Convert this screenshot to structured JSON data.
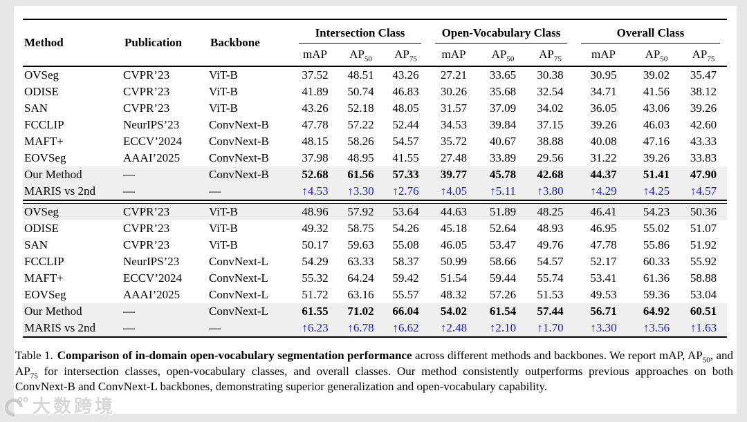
{
  "colors": {
    "delta_blue": "#1a1ad0",
    "row_highlight": "#efefef",
    "rule": "#000000",
    "page_background": "#e8e8e8",
    "card_background": "#ffffff"
  },
  "table": {
    "columns": {
      "method": "Method",
      "publication": "Publication",
      "backbone": "Backbone"
    },
    "groups": [
      {
        "label": "Intersection Class"
      },
      {
        "label": "Open-Vocabulary Class"
      },
      {
        "label": "Overall Class"
      }
    ],
    "metric_headers": [
      {
        "main": "mAP",
        "sub": ""
      },
      {
        "main": "AP",
        "sub": "50"
      },
      {
        "main": "AP",
        "sub": "75"
      },
      {
        "main": "mAP",
        "sub": ""
      },
      {
        "main": "AP",
        "sub": "50"
      },
      {
        "main": "AP",
        "sub": "75"
      },
      {
        "main": "mAP",
        "sub": ""
      },
      {
        "main": "AP",
        "sub": "50"
      },
      {
        "main": "AP",
        "sub": "75"
      }
    ],
    "blocks": [
      {
        "rows": [
          {
            "method": "OVSeg",
            "publication": "CVPR’23",
            "backbone": "ViT-B",
            "highlight": false,
            "bold": false,
            "delta": false,
            "values": [
              "37.52",
              "48.51",
              "43.26",
              "27.21",
              "33.65",
              "30.38",
              "30.95",
              "39.02",
              "35.47"
            ]
          },
          {
            "method": "ODISE",
            "publication": "CVPR’23",
            "backbone": "ViT-B",
            "highlight": false,
            "bold": false,
            "delta": false,
            "values": [
              "41.89",
              "50.74",
              "46.83",
              "30.26",
              "35.68",
              "32.54",
              "34.71",
              "41.56",
              "38.12"
            ]
          },
          {
            "method": "SAN",
            "publication": "CVPR’23",
            "backbone": "ViT-B",
            "highlight": false,
            "bold": false,
            "delta": false,
            "values": [
              "43.26",
              "52.18",
              "48.05",
              "31.57",
              "37.09",
              "34.02",
              "36.05",
              "43.06",
              "39.26"
            ]
          },
          {
            "method": "FCCLIP",
            "publication": "NeurIPS’23",
            "backbone": "ConvNext-B",
            "highlight": false,
            "bold": false,
            "delta": false,
            "values": [
              "47.78",
              "57.22",
              "52.44",
              "34.53",
              "39.84",
              "37.15",
              "39.26",
              "46.03",
              "42.60"
            ]
          },
          {
            "method": "MAFT+",
            "publication": "ECCV’2024",
            "backbone": "ConvNext-B",
            "highlight": false,
            "bold": false,
            "delta": false,
            "values": [
              "48.15",
              "58.26",
              "54.57",
              "35.72",
              "40.67",
              "38.88",
              "40.08",
              "47.16",
              "43.33"
            ]
          },
          {
            "method": "EOVSeg",
            "publication": "AAAI’2025",
            "backbone": "ConvNext-B",
            "highlight": false,
            "bold": false,
            "delta": false,
            "values": [
              "37.98",
              "48.95",
              "41.55",
              "27.48",
              "33.89",
              "29.56",
              "31.22",
              "39.26",
              "33.83"
            ]
          },
          {
            "method": "Our Method",
            "publication": "—",
            "backbone": "ConvNext-B",
            "highlight": true,
            "bold": true,
            "delta": false,
            "values": [
              "52.68",
              "61.56",
              "57.33",
              "39.77",
              "45.78",
              "42.68",
              "44.37",
              "51.41",
              "47.90"
            ]
          },
          {
            "method": "MARIS vs 2nd",
            "publication": "—",
            "backbone": "—",
            "highlight": true,
            "bold": false,
            "delta": true,
            "values": [
              "↑4.53",
              "↑3.30",
              "↑2.76",
              "↑4.05",
              "↑5.11",
              "↑3.80",
              "↑4.29",
              "↑4.25",
              "↑4.57"
            ]
          }
        ]
      },
      {
        "rows": [
          {
            "method": "OVSeg",
            "publication": "CVPR’23",
            "backbone": "ViT-B",
            "highlight": true,
            "bold": false,
            "delta": false,
            "values": [
              "48.96",
              "57.92",
              "53.64",
              "44.63",
              "51.89",
              "48.25",
              "46.41",
              "54.23",
              "50.36"
            ]
          },
          {
            "method": "ODISE",
            "publication": "CVPR’23",
            "backbone": "ViT-B",
            "highlight": false,
            "bold": false,
            "delta": false,
            "values": [
              "49.32",
              "58.75",
              "54.26",
              "45.18",
              "52.64",
              "48.93",
              "46.95",
              "55.02",
              "51.07"
            ]
          },
          {
            "method": "SAN",
            "publication": "CVPR’23",
            "backbone": "ViT-B",
            "highlight": false,
            "bold": false,
            "delta": false,
            "values": [
              "50.17",
              "59.63",
              "55.08",
              "46.05",
              "53.47",
              "49.76",
              "47.78",
              "55.86",
              "51.92"
            ]
          },
          {
            "method": "FCCLIP",
            "publication": "NeurIPS’23",
            "backbone": "ConvNext-L",
            "highlight": false,
            "bold": false,
            "delta": false,
            "values": [
              "54.29",
              "63.33",
              "58.37",
              "50.99",
              "58.66",
              "54.57",
              "52.17",
              "60.33",
              "55.92"
            ]
          },
          {
            "method": "MAFT+",
            "publication": "ECCV’2024",
            "backbone": "ConvNext-L",
            "highlight": false,
            "bold": false,
            "delta": false,
            "values": [
              "55.32",
              "64.24",
              "59.42",
              "51.54",
              "59.44",
              "55.74",
              "53.41",
              "61.36",
              "58.88"
            ]
          },
          {
            "method": "EOVSeg",
            "publication": "AAAI’2025",
            "backbone": "ConvNext-L",
            "highlight": false,
            "bold": false,
            "delta": false,
            "values": [
              "51.72",
              "63.16",
              "55.57",
              "48.32",
              "57.26",
              "51.53",
              "49.53",
              "59.36",
              "53.04"
            ]
          },
          {
            "method": "Our Method",
            "publication": "—",
            "backbone": "ConvNext-L",
            "highlight": true,
            "bold": true,
            "delta": false,
            "values": [
              "61.55",
              "71.02",
              "66.04",
              "54.02",
              "61.54",
              "57.44",
              "56.71",
              "64.92",
              "60.51"
            ]
          },
          {
            "method": "MARIS vs 2nd",
            "publication": "—",
            "backbone": "—",
            "highlight": true,
            "bold": false,
            "delta": true,
            "values": [
              "↑6.23",
              "↑6.78",
              "↑6.62",
              "↑2.48",
              "↑2.10",
              "↑1.70",
              "↑3.30",
              "↑3.56",
              "↑1.63"
            ]
          }
        ]
      }
    ]
  },
  "caption": {
    "label": "Table 1.",
    "bold": "Comparison of in-domain open-vocabulary segmentation performance",
    "seg1": " across different methods and backbones. We report mAP, AP",
    "sub1": "50",
    "seg2": ", and AP",
    "sub2": "75",
    "seg3": " for intersection classes, open-vocabulary classes, and overall classes. Our method consistently outperforms previous approaches on both ConvNext-B and ConvNext-L backbones, demonstrating superior generalization and open-vocabulary capability."
  },
  "watermark": {
    "logo_superscript": "oo",
    "text": "大数跨境"
  }
}
